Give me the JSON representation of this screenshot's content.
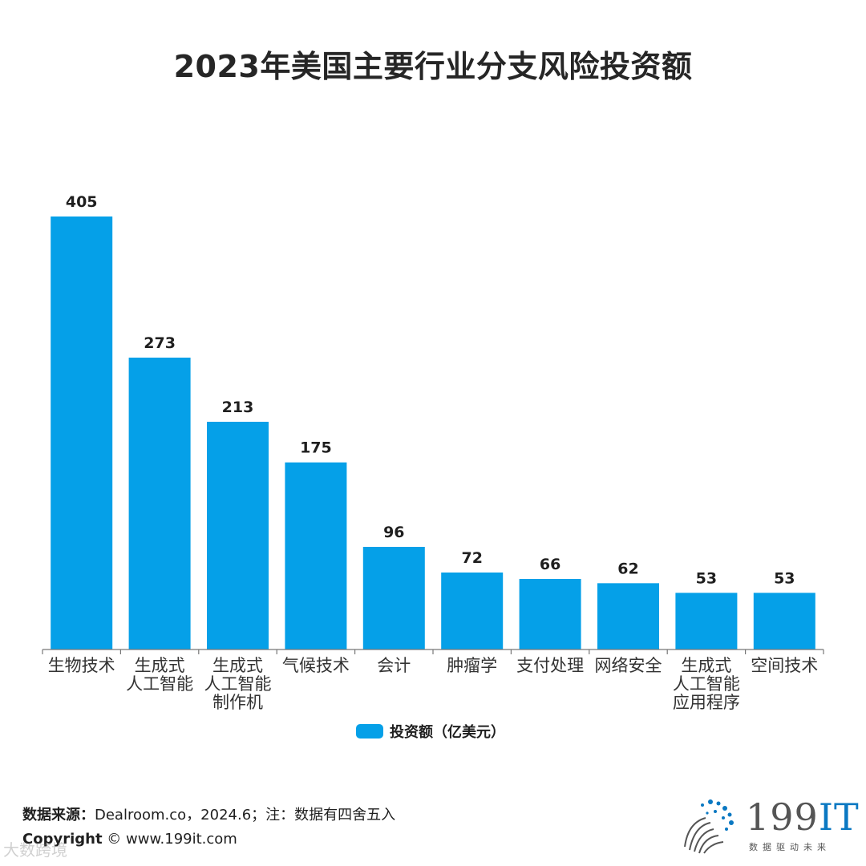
{
  "chart_data": {
    "type": "bar",
    "title": "2023年美国主要行业分支风险投资额",
    "categories": [
      [
        "生物技术"
      ],
      [
        "生成式",
        "人工智能"
      ],
      [
        "生成式",
        "人工智能",
        "制作机"
      ],
      [
        "气候技术"
      ],
      [
        "会计"
      ],
      [
        "肿瘤学"
      ],
      [
        "支付处理"
      ],
      [
        "网络安全"
      ],
      [
        "生成式",
        "人工智能",
        "应用程序"
      ],
      [
        "空间技术"
      ]
    ],
    "series": [
      {
        "name": "投资额（亿美元）",
        "values": [
          405,
          273,
          213,
          175,
          96,
          72,
          66,
          62,
          53,
          53
        ]
      }
    ],
    "ylim": [
      0,
      405
    ],
    "grid": false,
    "legend": "bottom-center",
    "colors": {
      "bar": "#05a0e8"
    }
  },
  "footer": {
    "source_label": "数据来源：",
    "source_text": "Dealroom.co，2024.6；注：数据有四舍五入",
    "copyright_label": "Copyright",
    "copyright_text": "© www.199it.com",
    "watermark": "大数跨境"
  },
  "logo": {
    "name_digits": "199",
    "name_letters": "IT",
    "slogan": "数据驱动未来"
  }
}
